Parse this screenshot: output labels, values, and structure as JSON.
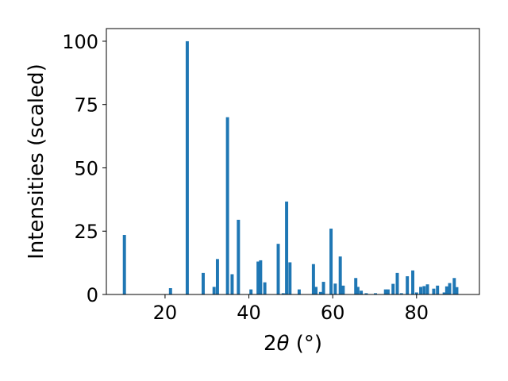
{
  "chart_data": {
    "type": "bar",
    "xlabel_prefix": "2",
    "xlabel_theta": "θ",
    "xlabel_unit": " (°)",
    "ylabel": "Intensities (scaled)",
    "xlim": [
      6,
      95
    ],
    "ylim": [
      0,
      105
    ],
    "xticks": [
      20,
      40,
      60,
      80
    ],
    "yticks": [
      0,
      25,
      50,
      75,
      100
    ],
    "bar_width": 0.75,
    "grid": false,
    "legend": "none",
    "bar_color": "#1f77b4",
    "x": [
      10.3,
      21.3,
      25.3,
      29.1,
      31.7,
      32.5,
      34.9,
      36.0,
      37.5,
      40.5,
      42.2,
      42.8,
      43.8,
      47.0,
      48.2,
      49.0,
      49.8,
      52.0,
      55.4,
      56.0,
      57.1,
      57.8,
      59.6,
      60.6,
      61.8,
      62.5,
      65.5,
      66.0,
      66.8,
      68.0,
      70.2,
      72.6,
      73.2,
      74.4,
      75.4,
      76.4,
      77.8,
      79.1,
      80.0,
      81.0,
      81.8,
      82.6,
      84.1,
      85.0,
      86.6,
      87.2,
      87.9,
      89.0,
      89.6
    ],
    "values": [
      23.5,
      2.5,
      100,
      8.5,
      3,
      14,
      70,
      8,
      29.5,
      2,
      13,
      13.5,
      4.8,
      20,
      0.5,
      36.7,
      12.7,
      2,
      12,
      3,
      1,
      5,
      26,
      4.3,
      15,
      3.5,
      6.5,
      3,
      1.5,
      0.5,
      0.5,
      2,
      2,
      4.2,
      8.5,
      0.5,
      7.2,
      9.5,
      0.8,
      3,
      3.3,
      4,
      2.3,
      3.5,
      0.8,
      3.2,
      4.5,
      6.5,
      2.9
    ]
  }
}
